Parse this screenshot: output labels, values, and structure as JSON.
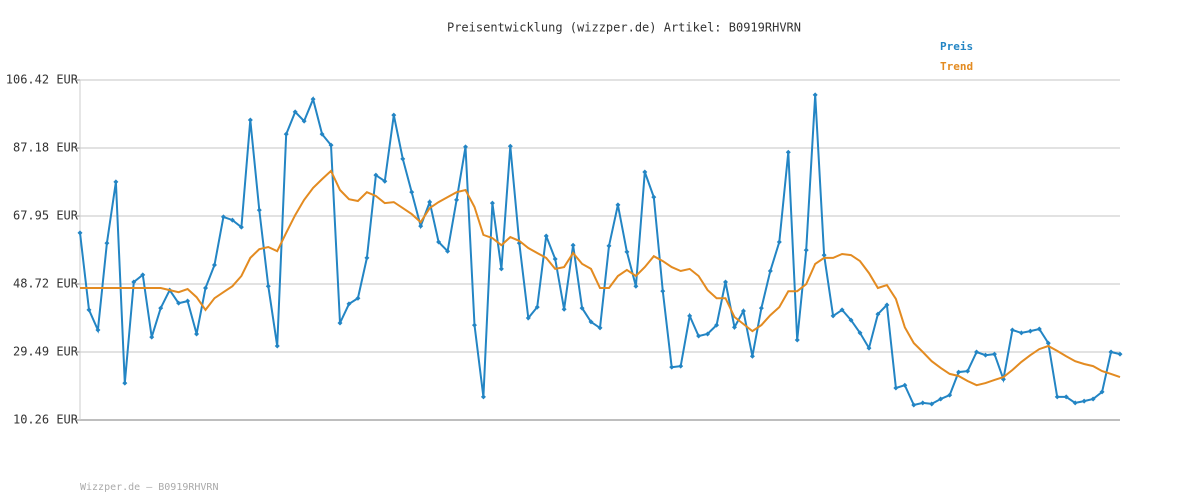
{
  "chart_data": {
    "type": "line",
    "title": "Preisentwicklung (wizzper.de) Artikel: B0919RHVRN",
    "footer": "Wizzper.de – B0919RHVRN",
    "ylim": [
      10.26,
      106.42
    ],
    "yticks": [
      {
        "value": 10.26,
        "label": "10.26 EUR"
      },
      {
        "value": 29.49,
        "label": "29.49 EUR"
      },
      {
        "value": 48.72,
        "label": "48.72 EUR"
      },
      {
        "value": 67.95,
        "label": "67.95 EUR"
      },
      {
        "value": 87.18,
        "label": "87.18 EUR"
      },
      {
        "value": 106.42,
        "label": "106.42 EUR"
      }
    ],
    "grid": true,
    "legend": "top-right",
    "series": [
      {
        "name": "Preis",
        "color": "#2385c4",
        "markers": true,
        "values": [
          63.2,
          41.4,
          35.7,
          60.3,
          77.6,
          20.7,
          49.3,
          51.3,
          33.7,
          41.9,
          47.0,
          43.3,
          43.9,
          34.6,
          47.6,
          54.1,
          67.7,
          66.8,
          64.8,
          95.1,
          69.6,
          48.1,
          31.2,
          91.1,
          97.4,
          94.8,
          101.0,
          91.1,
          88.0,
          37.7,
          43.1,
          44.7,
          56.1,
          79.5,
          77.8,
          96.5,
          84.1,
          74.7,
          65.1,
          71.9,
          60.6,
          58.0,
          72.5,
          87.5,
          37.1,
          16.8,
          71.6,
          53.0,
          87.7,
          60.3,
          39.1,
          42.2,
          62.3,
          55.8,
          41.6,
          59.7,
          41.9,
          38.0,
          36.3,
          59.5,
          71.1,
          57.8,
          48.1,
          80.4,
          73.3,
          46.7,
          25.2,
          25.5,
          39.7,
          34.0,
          34.6,
          37.1,
          49.3,
          36.5,
          41.1,
          28.3,
          41.9,
          52.4,
          60.6,
          86.0,
          32.9,
          58.3,
          102.2,
          56.9,
          39.7,
          41.4,
          38.5,
          34.9,
          30.6,
          40.2,
          42.8,
          19.3,
          20.1,
          14.5,
          15.1,
          14.8,
          16.2,
          17.3,
          23.8,
          24.1,
          29.5,
          28.6,
          28.9,
          21.8,
          35.7,
          34.9,
          35.4,
          36.0,
          32.0,
          16.8,
          16.8,
          15.1,
          15.6,
          16.2,
          18.2,
          29.5,
          28.9
        ]
      },
      {
        "name": "Trend",
        "color": "#e38b21",
        "markers": false,
        "values": [
          47.6,
          47.6,
          47.6,
          47.6,
          47.6,
          47.6,
          47.6,
          47.6,
          47.6,
          47.6,
          47.0,
          46.4,
          47.3,
          45.0,
          41.4,
          44.7,
          46.4,
          48.1,
          51.0,
          56.1,
          58.6,
          59.2,
          58.0,
          63.2,
          68.2,
          72.5,
          75.9,
          78.4,
          80.7,
          75.3,
          72.7,
          72.2,
          74.7,
          73.6,
          71.6,
          71.9,
          70.2,
          68.5,
          66.2,
          70.2,
          71.9,
          73.3,
          74.7,
          75.3,
          70.5,
          62.6,
          61.7,
          59.7,
          62.0,
          60.9,
          58.9,
          57.5,
          56.1,
          53.0,
          53.5,
          57.5,
          54.4,
          53.0,
          47.6,
          47.6,
          51.0,
          52.7,
          51.0,
          53.5,
          56.6,
          55.2,
          53.5,
          52.4,
          53.0,
          51.0,
          47.0,
          44.7,
          44.7,
          39.4,
          37.4,
          35.4,
          37.1,
          39.9,
          42.2,
          46.7,
          46.7,
          48.7,
          54.4,
          56.1,
          56.1,
          57.2,
          56.9,
          55.2,
          51.8,
          47.6,
          48.4,
          44.5,
          36.5,
          32.0,
          29.5,
          26.9,
          25.0,
          23.3,
          22.7,
          21.3,
          20.1,
          20.7,
          21.6,
          22.4,
          24.4,
          26.7,
          28.6,
          30.3,
          31.2,
          29.8,
          28.3,
          26.9,
          26.1,
          25.5,
          24.1,
          23.3,
          22.4
        ]
      }
    ]
  }
}
